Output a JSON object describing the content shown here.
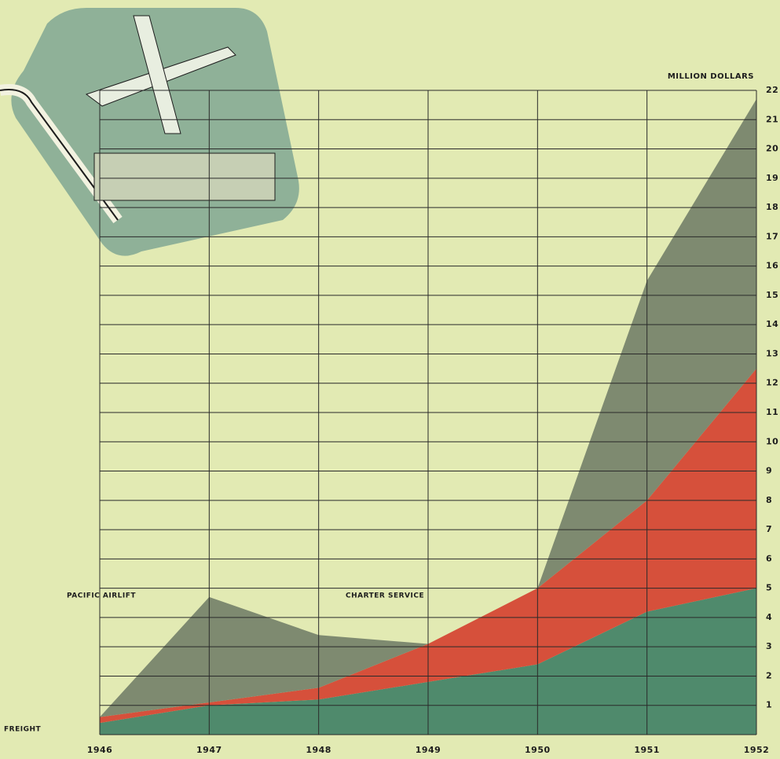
{
  "chart_data": {
    "type": "stacked_area",
    "y_axis_label": "MILLION DOLLARS",
    "x": [
      1946,
      1947,
      1948,
      1949,
      1950,
      1951,
      1952
    ],
    "series": [
      {
        "name": "FREIGHT",
        "color": "#4f8a6c",
        "values": [
          0.4,
          1.0,
          1.2,
          1.8,
          2.4,
          4.2,
          5.0
        ]
      },
      {
        "name": "CHARTER SERVICE",
        "color": "#d6503b",
        "values": [
          0.2,
          0.1,
          0.4,
          1.3,
          2.6,
          3.8,
          7.5
        ]
      },
      {
        "name": "PACIFIC AIRLIFT",
        "color": "#7e8a70",
        "values": [
          0,
          3.6,
          1.8,
          0,
          0,
          7.5,
          9.2
        ]
      }
    ],
    "xlim": [
      1946,
      1952
    ],
    "xticks": [
      1946,
      1947,
      1948,
      1949,
      1950,
      1951,
      1952
    ],
    "ylim": [
      0,
      22
    ],
    "yticks": [
      1,
      2,
      3,
      4,
      5,
      6,
      7,
      8,
      9,
      10,
      11,
      12,
      13,
      14,
      15,
      16,
      17,
      18,
      19,
      20,
      21,
      22
    ],
    "grid": true,
    "y_axis_side": "right"
  }
}
